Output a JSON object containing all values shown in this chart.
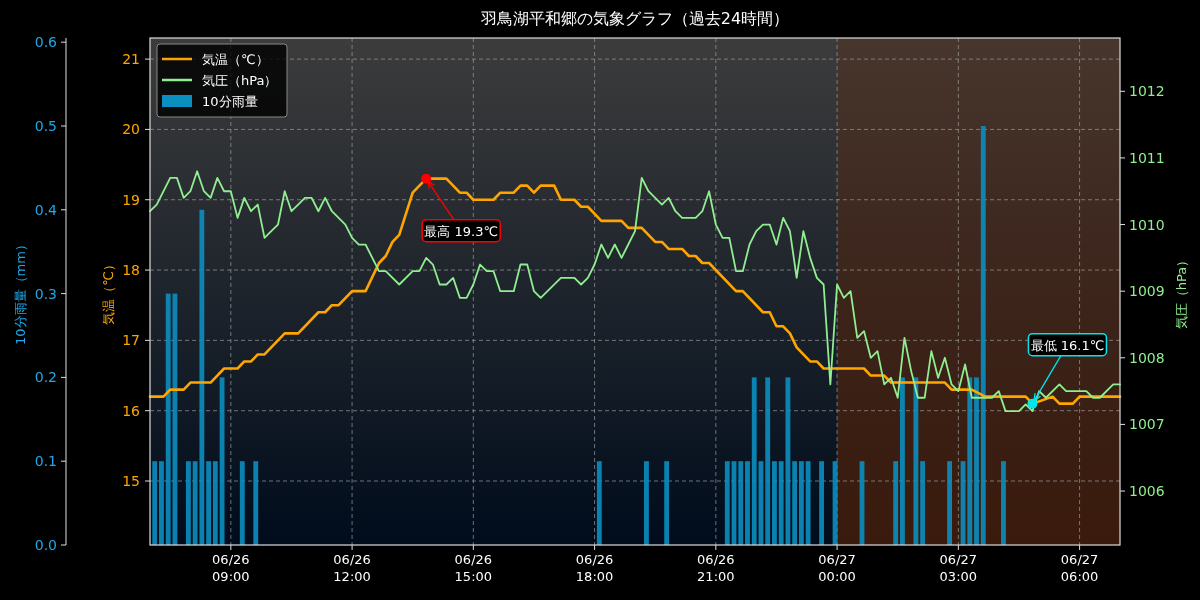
{
  "chart_data": {
    "type": "line",
    "title": "羽鳥湖平和郷の気象グラフ（過去24時間）",
    "ylabel": "気温（℃）",
    "y2label": "気圧（hPa）",
    "y3label": "10分雨量（mm）",
    "xlim": [
      "--06-26T07:00",
      "--06-27T07:00"
    ],
    "xticks": [
      {
        "value": "--06-26T09:00",
        "label": "06/26\n09:00"
      },
      {
        "value": "--06-26T12:00",
        "label": "06/26\n12:00"
      },
      {
        "value": "--06-26T15:00",
        "label": "06/26\n15:00"
      },
      {
        "value": "--06-26T18:00",
        "label": "06/26\n18:00"
      },
      {
        "value": "--06-26T21:00",
        "label": "06/26\n21:00"
      },
      {
        "value": "--06-27T00:00",
        "label": "06/27\n00:00"
      },
      {
        "value": "--06-27T03:00",
        "label": "06/27\n03:00"
      },
      {
        "value": "--06-27T06:00",
        "label": "06/27\n06:00"
      }
    ],
    "ylim": [
      14.09,
      21.3
    ],
    "yticks": [
      15,
      16,
      17,
      18,
      19,
      20,
      21
    ],
    "y2lim": [
      1005.19,
      1012.8
    ],
    "y2ticks": [
      1006,
      1007,
      1008,
      1009,
      1010,
      1011,
      1012
    ],
    "y3lim": [
      0,
      0.605
    ],
    "y3ticks": [
      {
        "value": 0,
        "label": "0.0"
      },
      0.1,
      0.2,
      0.3,
      0.4,
      0.5,
      0.6
    ],
    "grid": true,
    "legend": "top left",
    "bands": [
      {
        "axis": "x",
        "from": "--06-27T00:00",
        "to": "--06-27T07:00",
        "color": "#6a2600"
      }
    ],
    "series": [
      {
        "name": "10分雨量",
        "type": "bar",
        "axis": "y3",
        "color": "#0b8ec0",
        "x": [
          "--06-26T07:07",
          "--06-26T07:17",
          "--06-26T07:27",
          "--06-26T07:37",
          "--06-26T07:57",
          "--06-26T08:07",
          "--06-26T08:17",
          "--06-26T08:27",
          "--06-26T08:37",
          "--06-26T08:47",
          "--06-26T09:17",
          "--06-26T09:37",
          "--06-26T18:07",
          "--06-26T19:17",
          "--06-26T19:47",
          "--06-26T21:17",
          "--06-26T21:27",
          "--06-26T21:37",
          "--06-26T21:47",
          "--06-26T21:57",
          "--06-26T22:07",
          "--06-26T22:17",
          "--06-26T22:27",
          "--06-26T22:37",
          "--06-26T22:47",
          "--06-26T22:57",
          "--06-26T23:07",
          "--06-26T23:17",
          "--06-26T23:37",
          "--06-26T23:57",
          "--06-27T00:37",
          "--06-27T01:27",
          "--06-27T01:37",
          "--06-27T01:57",
          "--06-27T02:07",
          "--06-27T02:47",
          "--06-27T03:07",
          "--06-27T03:17",
          "--06-27T03:27",
          "--06-27T03:37",
          "--06-27T04:07"
        ],
        "values": [
          0.1,
          0.1,
          0.3,
          0.3,
          0.1,
          0.1,
          0.4,
          0.1,
          0.1,
          0.2,
          0.1,
          0.1,
          0.1,
          0.1,
          0.1,
          0.1,
          0.1,
          0.1,
          0.1,
          0.2,
          0.1,
          0.2,
          0.1,
          0.1,
          0.2,
          0.1,
          0.1,
          0.1,
          0.1,
          0.1,
          0.1,
          0.1,
          0.2,
          0.2,
          0.1,
          0.1,
          0.1,
          0.2,
          0.2,
          0.5,
          0.1
        ]
      },
      {
        "name": "気温（℃）",
        "color": "#ffa500",
        "x": [
          "--06-26T07:00",
          "--06-26T07:20",
          "--06-26T07:30",
          "--06-26T07:50",
          "--06-26T08:00",
          "--06-26T08:30",
          "--06-26T08:50",
          "--06-26T09:10",
          "--06-26T09:20",
          "--06-26T09:30",
          "--06-26T09:40",
          "--06-26T09:50",
          "--06-26T10:20",
          "--06-26T10:40",
          "--06-26T11:10",
          "--06-26T11:20",
          "--06-26T11:30",
          "--06-26T11:40",
          "--06-26T12:00",
          "--06-26T12:20",
          "--06-26T12:40",
          "--06-26T12:50",
          "--06-26T13:00",
          "--06-26T13:10",
          "--06-26T13:30",
          "--06-26T13:50",
          "--06-26T14:20",
          "--06-26T14:40",
          "--06-26T14:50",
          "--06-26T15:00",
          "--06-26T15:30",
          "--06-26T15:40",
          "--06-26T16:00",
          "--06-26T16:10",
          "--06-26T16:20",
          "--06-26T16:30",
          "--06-26T16:40",
          "--06-26T17:00",
          "--06-26T17:10",
          "--06-26T17:30",
          "--06-26T17:40",
          "--06-26T17:50",
          "--06-26T18:10",
          "--06-26T18:40",
          "--06-26T18:50",
          "--06-26T19:10",
          "--06-26T19:30",
          "--06-26T19:40",
          "--06-26T19:50",
          "--06-26T20:10",
          "--06-26T20:20",
          "--06-26T20:30",
          "--06-26T20:40",
          "--06-26T20:50",
          "--06-26T21:30",
          "--06-26T21:40",
          "--06-26T22:10",
          "--06-26T22:20",
          "--06-26T22:30",
          "--06-26T22:40",
          "--06-26T22:50",
          "--06-26T23:00",
          "--06-26T23:10",
          "--06-26T23:20",
          "--06-26T23:30",
          "--06-26T23:40",
          "--06-27T00:40",
          "--06-27T00:50",
          "--06-27T01:10",
          "--06-27T01:20",
          "--06-27T02:40",
          "--06-27T02:50",
          "--06-27T03:20",
          "--06-27T03:40",
          "--06-27T04:40",
          "--06-27T04:50",
          "--06-27T05:20",
          "--06-27T05:30",
          "--06-27T05:50",
          "--06-27T06:00",
          "--06-27T07:00"
        ],
        "values": [
          16.2,
          16.2,
          16.3,
          16.3,
          16.4,
          16.4,
          16.6,
          16.6,
          16.7,
          16.7,
          16.8,
          16.8,
          17.1,
          17.1,
          17.4,
          17.4,
          17.5,
          17.5,
          17.7,
          17.7,
          18.1,
          18.2,
          18.4,
          18.5,
          19.1,
          19.3,
          19.3,
          19.1,
          19.1,
          19.0,
          19.0,
          19.1,
          19.1,
          19.2,
          19.2,
          19.1,
          19.2,
          19.2,
          19.0,
          19.0,
          18.9,
          18.9,
          18.7,
          18.7,
          18.6,
          18.6,
          18.4,
          18.4,
          18.3,
          18.3,
          18.2,
          18.2,
          18.1,
          18.1,
          17.7,
          17.7,
          17.4,
          17.4,
          17.2,
          17.2,
          17.1,
          16.9,
          16.8,
          16.7,
          16.7,
          16.6,
          16.6,
          16.5,
          16.5,
          16.4,
          16.4,
          16.3,
          16.3,
          16.2,
          16.2,
          16.1,
          16.2,
          16.1,
          16.1,
          16.2,
          16.2
        ]
      },
      {
        "name": "気圧（hPa）",
        "axis": "y2",
        "color": "#90ee90",
        "x": [
          "--06-26T07:00",
          "--06-26T07:10",
          "--06-26T07:30",
          "--06-26T07:40",
          "--06-26T07:50",
          "--06-26T08:00",
          "--06-26T08:10",
          "--06-26T08:20",
          "--06-26T08:30",
          "--06-26T08:40",
          "--06-26T08:50",
          "--06-26T09:00",
          "--06-26T09:10",
          "--06-26T09:20",
          "--06-26T09:30",
          "--06-26T09:40",
          "--06-26T09:50",
          "--06-26T10:00",
          "--06-26T10:10",
          "--06-26T10:20",
          "--06-26T10:30",
          "--06-26T10:40",
          "--06-26T10:50",
          "--06-26T11:00",
          "--06-26T11:10",
          "--06-26T11:20",
          "--06-26T11:30",
          "--06-26T11:50",
          "--06-26T12:00",
          "--06-26T12:10",
          "--06-26T12:20",
          "--06-26T12:40",
          "--06-26T12:50",
          "--06-26T13:10",
          "--06-26T13:30",
          "--06-26T13:40",
          "--06-26T13:50",
          "--06-26T14:00",
          "--06-26T14:10",
          "--06-26T14:20",
          "--06-26T14:30",
          "--06-26T14:40",
          "--06-26T14:50",
          "--06-26T15:00",
          "--06-26T15:10",
          "--06-26T15:20",
          "--06-26T15:30",
          "--06-26T15:40",
          "--06-26T16:00",
          "--06-26T16:10",
          "--06-26T16:20",
          "--06-26T16:30",
          "--06-26T16:40",
          "--06-26T17:10",
          "--06-26T17:30",
          "--06-26T17:40",
          "--06-26T17:50",
          "--06-26T18:00",
          "--06-26T18:10",
          "--06-26T18:20",
          "--06-26T18:30",
          "--06-26T18:40",
          "--06-26T18:50",
          "--06-26T19:00",
          "--06-26T19:10",
          "--06-26T19:20",
          "--06-26T19:40",
          "--06-26T19:50",
          "--06-26T20:00",
          "--06-26T20:10",
          "--06-26T20:30",
          "--06-26T20:40",
          "--06-26T20:50",
          "--06-26T21:00",
          "--06-26T21:10",
          "--06-26T21:20",
          "--06-26T21:30",
          "--06-26T21:40",
          "--06-26T21:50",
          "--06-26T22:00",
          "--06-26T22:10",
          "--06-26T22:20",
          "--06-26T22:30",
          "--06-26T22:40",
          "--06-26T22:50",
          "--06-26T23:00",
          "--06-26T23:10",
          "--06-26T23:20",
          "--06-26T23:30",
          "--06-26T23:40",
          "--06-26T23:50",
          "--06-27T00:00",
          "--06-27T00:10",
          "--06-27T00:20",
          "--06-27T00:30",
          "--06-27T00:40",
          "--06-27T00:50",
          "--06-27T01:00",
          "--06-27T01:10",
          "--06-27T01:20",
          "--06-27T01:30",
          "--06-27T01:40",
          "--06-27T01:50",
          "--06-27T02:00",
          "--06-27T02:10",
          "--06-27T02:20",
          "--06-27T02:30",
          "--06-27T02:40",
          "--06-27T02:50",
          "--06-27T03:00",
          "--06-27T03:10",
          "--06-27T03:20",
          "--06-27T03:50",
          "--06-27T04:00",
          "--06-27T04:10",
          "--06-27T04:30",
          "--06-27T04:40",
          "--06-27T04:50",
          "--06-27T05:00",
          "--06-27T05:10",
          "--06-27T05:30",
          "--06-27T05:40",
          "--06-27T06:10",
          "--06-27T06:20",
          "--06-27T06:30",
          "--06-27T06:50",
          "--06-27T07:00"
        ],
        "values": [
          1010.2,
          1010.3,
          1010.7,
          1010.7,
          1010.4,
          1010.5,
          1010.8,
          1010.5,
          1010.4,
          1010.7,
          1010.5,
          1010.5,
          1010.1,
          1010.4,
          1010.2,
          1010.3,
          1009.8,
          1009.9,
          1010.0,
          1010.5,
          1010.2,
          1010.3,
          1010.4,
          1010.4,
          1010.2,
          1010.4,
          1010.2,
          1010.0,
          1009.8,
          1009.7,
          1009.7,
          1009.3,
          1009.3,
          1009.1,
          1009.3,
          1009.3,
          1009.5,
          1009.4,
          1009.1,
          1009.1,
          1009.2,
          1008.9,
          1008.9,
          1009.1,
          1009.4,
          1009.3,
          1009.3,
          1009.0,
          1009.0,
          1009.4,
          1009.4,
          1009.0,
          1008.9,
          1009.2,
          1009.2,
          1009.1,
          1009.2,
          1009.4,
          1009.7,
          1009.5,
          1009.7,
          1009.5,
          1009.7,
          1009.9,
          1010.7,
          1010.5,
          1010.3,
          1010.4,
          1010.2,
          1010.1,
          1010.1,
          1010.2,
          1010.5,
          1010.0,
          1009.8,
          1009.8,
          1009.3,
          1009.3,
          1009.7,
          1009.9,
          1010.0,
          1010.0,
          1009.7,
          1010.1,
          1009.9,
          1009.2,
          1009.9,
          1009.5,
          1009.2,
          1009.1,
          1007.6,
          1009.1,
          1008.9,
          1009.0,
          1008.3,
          1008.4,
          1008.0,
          1008.1,
          1007.6,
          1007.7,
          1007.4,
          1008.3,
          1007.8,
          1007.4,
          1007.4,
          1008.1,
          1007.7,
          1008.0,
          1007.6,
          1007.5,
          1007.9,
          1007.4,
          1007.4,
          1007.5,
          1007.2,
          1007.2,
          1007.3,
          1007.2,
          1007.5,
          1007.4,
          1007.6,
          1007.5,
          1007.5,
          1007.4,
          1007.4,
          1007.6,
          1007.6
        ]
      },
      {
        "type": "scatter",
        "color": "#ff0000",
        "x": [
          "--06-26T13:50"
        ],
        "values": [
          19.3
        ]
      },
      {
        "type": "scatter",
        "color": "#00e5ee",
        "x": [
          "--06-27T04:50"
        ],
        "values": [
          16.1
        ]
      }
    ],
    "annotations": [
      {
        "text": "最高 19.3℃",
        "x": "--06-26T13:50",
        "y": 19.3
      },
      {
        "text": "最低 16.1℃",
        "x": "--06-27T04:50",
        "y": 16.1
      }
    ]
  }
}
